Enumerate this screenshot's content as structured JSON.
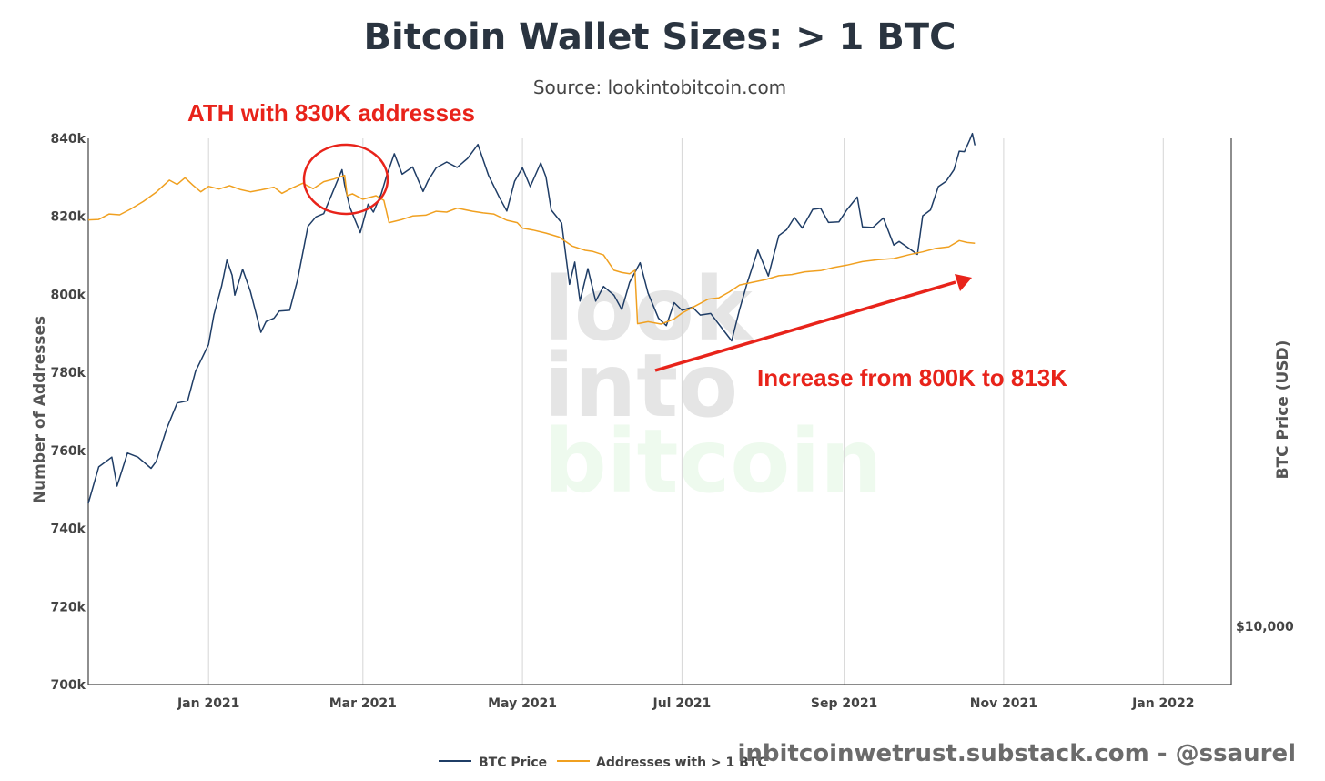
{
  "chart_data": {
    "type": "line",
    "title": "Bitcoin Wallet Sizes: > 1 BTC",
    "subtitle": "Source: lookintobitcoin.com",
    "xlabel": "",
    "ylabel": "Number of Addresses",
    "y2label": "BTC Price (USD)",
    "xlim": [
      "2020-11-16",
      "2022-01-27"
    ],
    "ylim": [
      700000,
      840000
    ],
    "x_ticks": [
      {
        "date": "2021-01-01",
        "label": "Jan 2021"
      },
      {
        "date": "2021-03-01",
        "label": "Mar 2021"
      },
      {
        "date": "2021-05-01",
        "label": "May 2021"
      },
      {
        "date": "2021-07-01",
        "label": "Jul 2021"
      },
      {
        "date": "2021-09-01",
        "label": "Sep 2021"
      },
      {
        "date": "2021-11-01",
        "label": "Nov 2021"
      },
      {
        "date": "2022-01-01",
        "label": "Jan 2022"
      }
    ],
    "y_ticks": [
      {
        "value": 700000,
        "label": "700k"
      },
      {
        "value": 720000,
        "label": "720k"
      },
      {
        "value": 740000,
        "label": "740k"
      },
      {
        "value": 760000,
        "label": "760k"
      },
      {
        "value": 780000,
        "label": "780k"
      },
      {
        "value": 800000,
        "label": "800k"
      },
      {
        "value": 820000,
        "label": "820k"
      },
      {
        "value": 840000,
        "label": "840k"
      }
    ],
    "y2_ticks": [
      {
        "value": 10000,
        "label": "$10,000"
      }
    ],
    "y2_scale": "log",
    "grid": {
      "vertical": true,
      "horizontal": false
    },
    "legend_position": "bottom-center",
    "series": [
      {
        "name": "BTC Price",
        "color": "#1f3d66",
        "axis": "y2",
        "points": [
          [
            "2020-11-16",
            16000
          ],
          [
            "2020-11-20",
            18400
          ],
          [
            "2020-11-25",
            19100
          ],
          [
            "2020-11-27",
            17100
          ],
          [
            "2020-12-01",
            19400
          ],
          [
            "2020-12-05",
            19100
          ],
          [
            "2020-12-10",
            18300
          ],
          [
            "2020-12-12",
            18800
          ],
          [
            "2020-12-16",
            21300
          ],
          [
            "2020-12-20",
            23500
          ],
          [
            "2020-12-24",
            23700
          ],
          [
            "2020-12-27",
            26500
          ],
          [
            "2021-01-01",
            29400
          ],
          [
            "2021-01-03",
            32900
          ],
          [
            "2021-01-06",
            36800
          ],
          [
            "2021-01-08",
            40600
          ],
          [
            "2021-01-10",
            38300
          ],
          [
            "2021-01-11",
            35500
          ],
          [
            "2021-01-14",
            39200
          ],
          [
            "2021-01-17",
            36000
          ],
          [
            "2021-01-21",
            30800
          ],
          [
            "2021-01-23",
            32100
          ],
          [
            "2021-01-26",
            32500
          ],
          [
            "2021-01-28",
            33400
          ],
          [
            "2021-02-01",
            33500
          ],
          [
            "2021-02-04",
            37600
          ],
          [
            "2021-02-08",
            46200
          ],
          [
            "2021-02-11",
            47900
          ],
          [
            "2021-02-14",
            48500
          ],
          [
            "2021-02-17",
            52100
          ],
          [
            "2021-02-21",
            57400
          ],
          [
            "2021-02-22",
            54100
          ],
          [
            "2021-02-24",
            49700
          ],
          [
            "2021-02-28",
            45100
          ],
          [
            "2021-03-03",
            50300
          ],
          [
            "2021-03-05",
            48800
          ],
          [
            "2021-03-08",
            52300
          ],
          [
            "2021-03-10",
            56000
          ],
          [
            "2021-03-13",
            61000
          ],
          [
            "2021-03-16",
            56400
          ],
          [
            "2021-03-20",
            58000
          ],
          [
            "2021-03-24",
            52800
          ],
          [
            "2021-03-26",
            55100
          ],
          [
            "2021-03-29",
            57800
          ],
          [
            "2021-04-02",
            59100
          ],
          [
            "2021-04-06",
            57900
          ],
          [
            "2021-04-10",
            59900
          ],
          [
            "2021-04-14",
            63200
          ],
          [
            "2021-04-18",
            56200
          ],
          [
            "2021-04-22",
            51800
          ],
          [
            "2021-04-25",
            49000
          ],
          [
            "2021-04-28",
            54900
          ],
          [
            "2021-05-01",
            57800
          ],
          [
            "2021-05-04",
            53800
          ],
          [
            "2021-05-08",
            58900
          ],
          [
            "2021-05-10",
            55800
          ],
          [
            "2021-05-12",
            49200
          ],
          [
            "2021-05-16",
            46800
          ],
          [
            "2021-05-19",
            37000
          ],
          [
            "2021-05-21",
            40300
          ],
          [
            "2021-05-23",
            34700
          ],
          [
            "2021-05-26",
            39300
          ],
          [
            "2021-05-29",
            34700
          ],
          [
            "2021-06-01",
            36700
          ],
          [
            "2021-06-05",
            35500
          ],
          [
            "2021-06-08",
            33600
          ],
          [
            "2021-06-11",
            37300
          ],
          [
            "2021-06-15",
            40200
          ],
          [
            "2021-06-18",
            35800
          ],
          [
            "2021-06-22",
            32500
          ],
          [
            "2021-06-25",
            31600
          ],
          [
            "2021-06-28",
            34500
          ],
          [
            "2021-07-01",
            33500
          ],
          [
            "2021-07-05",
            33900
          ],
          [
            "2021-07-08",
            32900
          ],
          [
            "2021-07-12",
            33100
          ],
          [
            "2021-07-16",
            31400
          ],
          [
            "2021-07-20",
            29800
          ],
          [
            "2021-07-23",
            33600
          ],
          [
            "2021-07-26",
            37300
          ],
          [
            "2021-07-30",
            42200
          ],
          [
            "2021-08-03",
            38200
          ],
          [
            "2021-08-07",
            44600
          ],
          [
            "2021-08-10",
            45600
          ],
          [
            "2021-08-13",
            47800
          ],
          [
            "2021-08-16",
            45900
          ],
          [
            "2021-08-20",
            49300
          ],
          [
            "2021-08-23",
            49500
          ],
          [
            "2021-08-26",
            46900
          ],
          [
            "2021-08-30",
            47000
          ],
          [
            "2021-09-02",
            49200
          ],
          [
            "2021-09-06",
            51700
          ],
          [
            "2021-09-08",
            46100
          ],
          [
            "2021-09-12",
            46000
          ],
          [
            "2021-09-16",
            47700
          ],
          [
            "2021-09-20",
            43000
          ],
          [
            "2021-09-22",
            43600
          ],
          [
            "2021-09-25",
            42700
          ],
          [
            "2021-09-29",
            41500
          ],
          [
            "2021-10-01",
            48100
          ],
          [
            "2021-10-04",
            49200
          ],
          [
            "2021-10-07",
            53800
          ],
          [
            "2021-10-10",
            54900
          ],
          [
            "2021-10-13",
            57400
          ],
          [
            "2021-10-15",
            61600
          ],
          [
            "2021-10-17",
            61500
          ],
          [
            "2021-10-19",
            64300
          ],
          [
            "2021-10-20",
            65900
          ],
          [
            "2021-10-21",
            63000
          ]
        ]
      },
      {
        "name": "Addresses with > 1 BTC",
        "color": "#f0a020",
        "axis": "y",
        "points": [
          [
            "2020-11-16",
            819100
          ],
          [
            "2020-11-20",
            819200
          ],
          [
            "2020-11-24",
            820600
          ],
          [
            "2020-11-28",
            820400
          ],
          [
            "2020-12-02",
            821800
          ],
          [
            "2020-12-07",
            823800
          ],
          [
            "2020-12-12",
            826200
          ],
          [
            "2020-12-17",
            829300
          ],
          [
            "2020-12-20",
            828200
          ],
          [
            "2020-12-23",
            829900
          ],
          [
            "2020-12-26",
            828000
          ],
          [
            "2020-12-29",
            826300
          ],
          [
            "2021-01-01",
            827700
          ],
          [
            "2021-01-05",
            827000
          ],
          [
            "2021-01-09",
            827900
          ],
          [
            "2021-01-13",
            826900
          ],
          [
            "2021-01-17",
            826300
          ],
          [
            "2021-01-21",
            826800
          ],
          [
            "2021-01-26",
            827500
          ],
          [
            "2021-01-29",
            825900
          ],
          [
            "2021-02-02",
            827300
          ],
          [
            "2021-02-06",
            828500
          ],
          [
            "2021-02-10",
            827100
          ],
          [
            "2021-02-14",
            828900
          ],
          [
            "2021-02-18",
            829600
          ],
          [
            "2021-02-22",
            830500
          ],
          [
            "2021-02-23",
            825300
          ],
          [
            "2021-02-25",
            825800
          ],
          [
            "2021-03-01",
            824400
          ],
          [
            "2021-03-06",
            825300
          ],
          [
            "2021-03-09",
            824100
          ],
          [
            "2021-03-11",
            818400
          ],
          [
            "2021-03-16",
            819200
          ],
          [
            "2021-03-20",
            820100
          ],
          [
            "2021-03-25",
            820300
          ],
          [
            "2021-03-29",
            821300
          ],
          [
            "2021-04-02",
            821100
          ],
          [
            "2021-04-06",
            822100
          ],
          [
            "2021-04-12",
            821300
          ],
          [
            "2021-04-16",
            820900
          ],
          [
            "2021-04-20",
            820600
          ],
          [
            "2021-04-25",
            819000
          ],
          [
            "2021-04-29",
            818400
          ],
          [
            "2021-05-01",
            817000
          ],
          [
            "2021-05-05",
            816500
          ],
          [
            "2021-05-10",
            815700
          ],
          [
            "2021-05-15",
            814700
          ],
          [
            "2021-05-20",
            812400
          ],
          [
            "2021-05-25",
            811300
          ],
          [
            "2021-05-28",
            811000
          ],
          [
            "2021-06-01",
            810100
          ],
          [
            "2021-06-05",
            806200
          ],
          [
            "2021-06-08",
            805600
          ],
          [
            "2021-06-11",
            805300
          ],
          [
            "2021-06-13",
            806200
          ],
          [
            "2021-06-14",
            792500
          ],
          [
            "2021-06-18",
            793000
          ],
          [
            "2021-06-23",
            792400
          ],
          [
            "2021-06-28",
            793700
          ],
          [
            "2021-07-01",
            795200
          ],
          [
            "2021-07-06",
            797000
          ],
          [
            "2021-07-11",
            798800
          ],
          [
            "2021-07-15",
            799100
          ],
          [
            "2021-07-19",
            800600
          ],
          [
            "2021-07-23",
            802400
          ],
          [
            "2021-07-28",
            803100
          ],
          [
            "2021-08-02",
            803800
          ],
          [
            "2021-08-07",
            804800
          ],
          [
            "2021-08-12",
            805100
          ],
          [
            "2021-08-17",
            805800
          ],
          [
            "2021-08-23",
            806100
          ],
          [
            "2021-08-28",
            806900
          ],
          [
            "2021-09-02",
            807500
          ],
          [
            "2021-09-08",
            808400
          ],
          [
            "2021-09-14",
            808900
          ],
          [
            "2021-09-20",
            809200
          ],
          [
            "2021-09-26",
            810200
          ],
          [
            "2021-10-01",
            810900
          ],
          [
            "2021-10-06",
            811800
          ],
          [
            "2021-10-11",
            812200
          ],
          [
            "2021-10-15",
            813800
          ],
          [
            "2021-10-18",
            813300
          ],
          [
            "2021-10-21",
            813100
          ]
        ]
      }
    ]
  },
  "annotations": {
    "ath_label": "ATH with 830K addresses",
    "increase_label": "Increase from 800K to 813K",
    "color": "#e8231a"
  },
  "watermark": {
    "line1": "look",
    "line2": "into",
    "line3": "bitcoin"
  },
  "credit": "inbitcoinwetrust.substack.com - @ssaurel"
}
